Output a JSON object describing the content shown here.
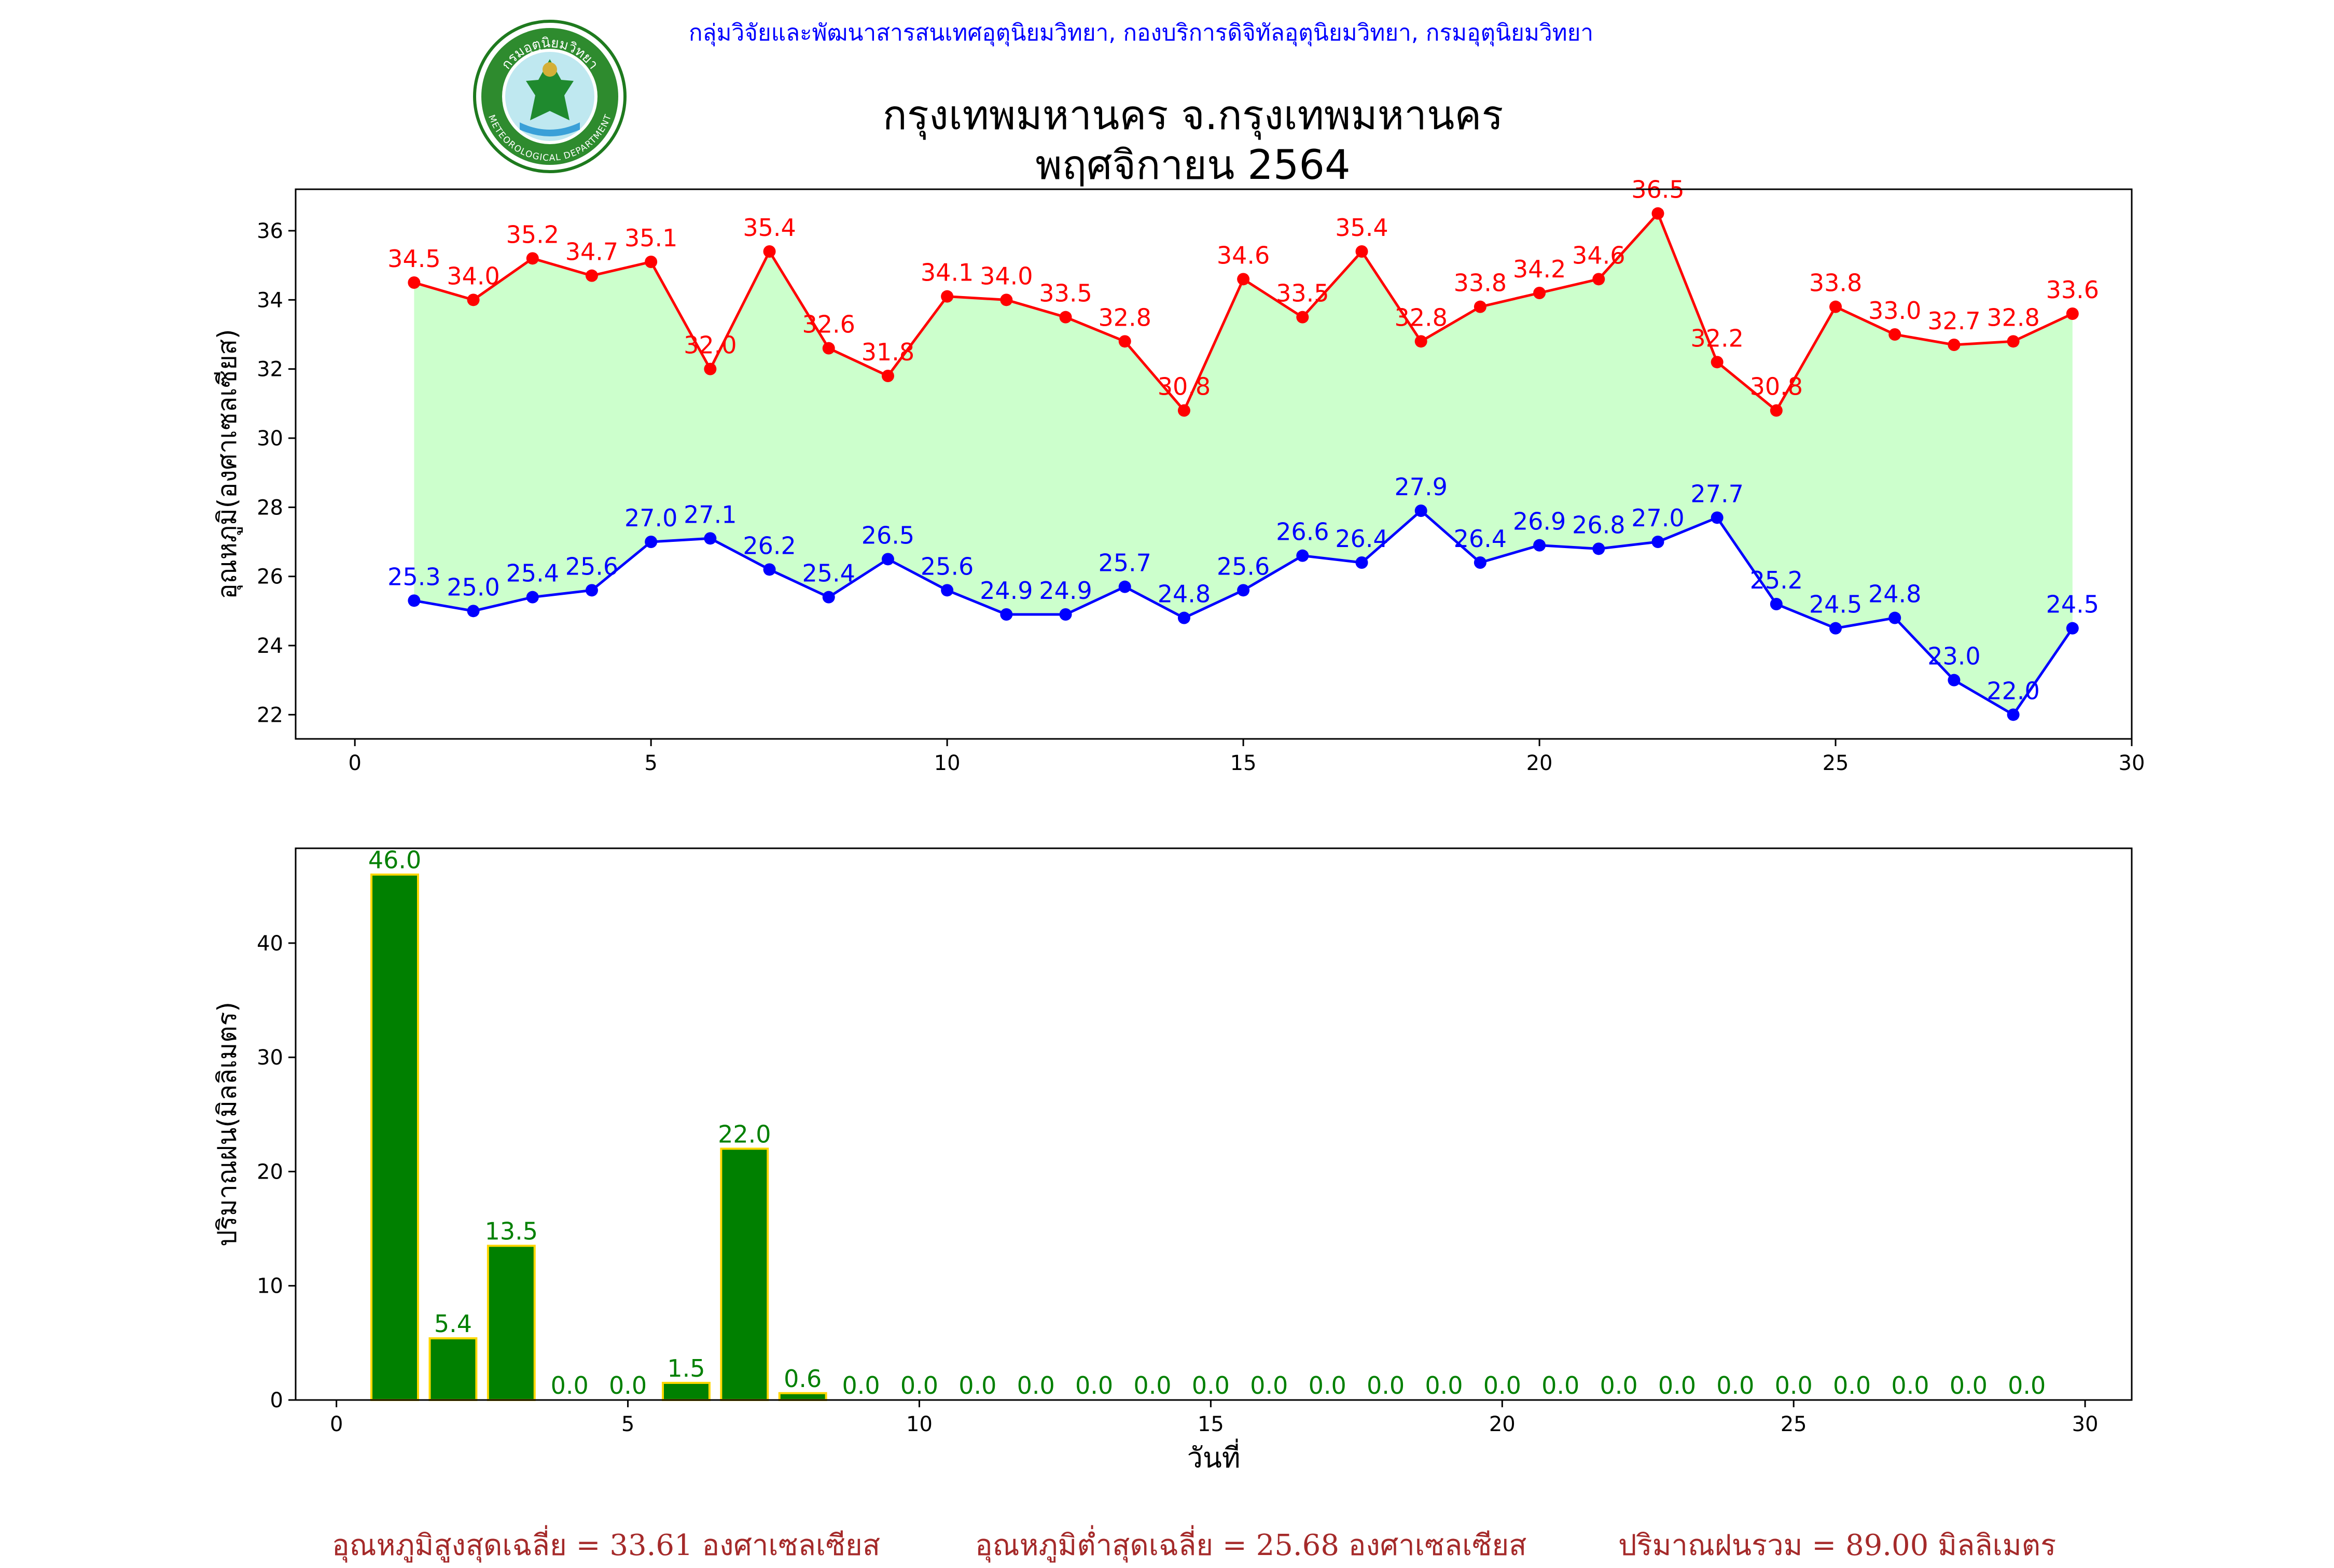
{
  "header": {
    "department": "กลุ่มวิจัยและพัฒนาสารสนเทศอุตุนิยมวิทยา, กองบริการดิจิทัลอุตุนิยมวิทยา, กรมอุตุนิยมวิทยา",
    "title_line1": "กรุงเทพมหานคร จ.กรุงเทพมหานคร",
    "title_line2": "พฤศจิกายน 2564",
    "logo_text_top": "กรมอุตุนิยมวิทยา",
    "logo_text_bottom": "METEOROLOGICAL DEPARTMENT"
  },
  "chart_data": [
    {
      "type": "line",
      "ylabel": "อุณหภูมิ(องศาเซลเซียส)",
      "xlim": [
        -1,
        30
      ],
      "ylim": [
        21.3,
        37.2
      ],
      "xticks": [
        0,
        5,
        10,
        15,
        20,
        25,
        30
      ],
      "yticks": [
        22,
        24,
        26,
        28,
        30,
        32,
        34,
        36
      ],
      "x": [
        1,
        2,
        3,
        4,
        5,
        6,
        7,
        8,
        9,
        10,
        11,
        12,
        13,
        14,
        15,
        16,
        17,
        18,
        19,
        20,
        21,
        22,
        23,
        24,
        25,
        26,
        27,
        28,
        29
      ],
      "series": [
        {
          "color": "#ff0000",
          "values": [
            34.5,
            34.0,
            35.2,
            34.7,
            35.1,
            32.0,
            35.4,
            32.6,
            31.8,
            34.1,
            34.0,
            33.5,
            32.8,
            30.8,
            34.6,
            33.5,
            35.4,
            32.8,
            33.8,
            34.2,
            34.6,
            36.5,
            32.2,
            30.8,
            33.8,
            33.0,
            32.7,
            32.8,
            33.6
          ]
        },
        {
          "color": "#0000ff",
          "values": [
            25.3,
            25.0,
            25.4,
            25.6,
            27.0,
            27.1,
            26.2,
            25.4,
            26.5,
            25.6,
            24.9,
            24.9,
            25.7,
            24.8,
            25.6,
            26.6,
            26.4,
            27.9,
            26.4,
            26.9,
            26.8,
            27.0,
            27.7,
            25.2,
            24.5,
            24.8,
            23.0,
            22.0,
            24.5
          ]
        }
      ],
      "fill_color": "#ccffcc",
      "grid": false
    },
    {
      "type": "bar",
      "xlabel": "วันที่",
      "ylabel": "ปริมาณฝน(มิลลิเมตร)",
      "xlim": [
        -0.7,
        30.8
      ],
      "ylim": [
        0,
        48.3
      ],
      "xticks": [
        0,
        5,
        10,
        15,
        20,
        25,
        30
      ],
      "yticks": [
        0,
        10,
        20,
        30,
        40
      ],
      "x": [
        1,
        2,
        3,
        4,
        5,
        6,
        7,
        8,
        9,
        10,
        11,
        12,
        13,
        14,
        15,
        16,
        17,
        18,
        19,
        20,
        21,
        22,
        23,
        24,
        25,
        26,
        27,
        28,
        29
      ],
      "values": [
        46.0,
        5.4,
        13.5,
        0.0,
        0.0,
        1.5,
        22.0,
        0.6,
        0.0,
        0.0,
        0.0,
        0.0,
        0.0,
        0.0,
        0.0,
        0.0,
        0.0,
        0.0,
        0.0,
        0.0,
        0.0,
        0.0,
        0.0,
        0.0,
        0.0,
        0.0,
        0.0,
        0.0,
        0.0
      ],
      "bar_color": "#008000",
      "edge_color": "#ffd700",
      "label_color": "#008000",
      "grid": false
    }
  ],
  "summary": {
    "avg_max": "อุณหภูมิสูงสุดเฉลี่ย = 33.61 องศาเซลเซียส",
    "avg_min": "อุณหภูมิต่ำสุดเฉลี่ย = 25.68 องศาเซลเซียส",
    "rain_total": "ปริมาณฝนรวม = 89.00 มิลลิเมตร"
  }
}
